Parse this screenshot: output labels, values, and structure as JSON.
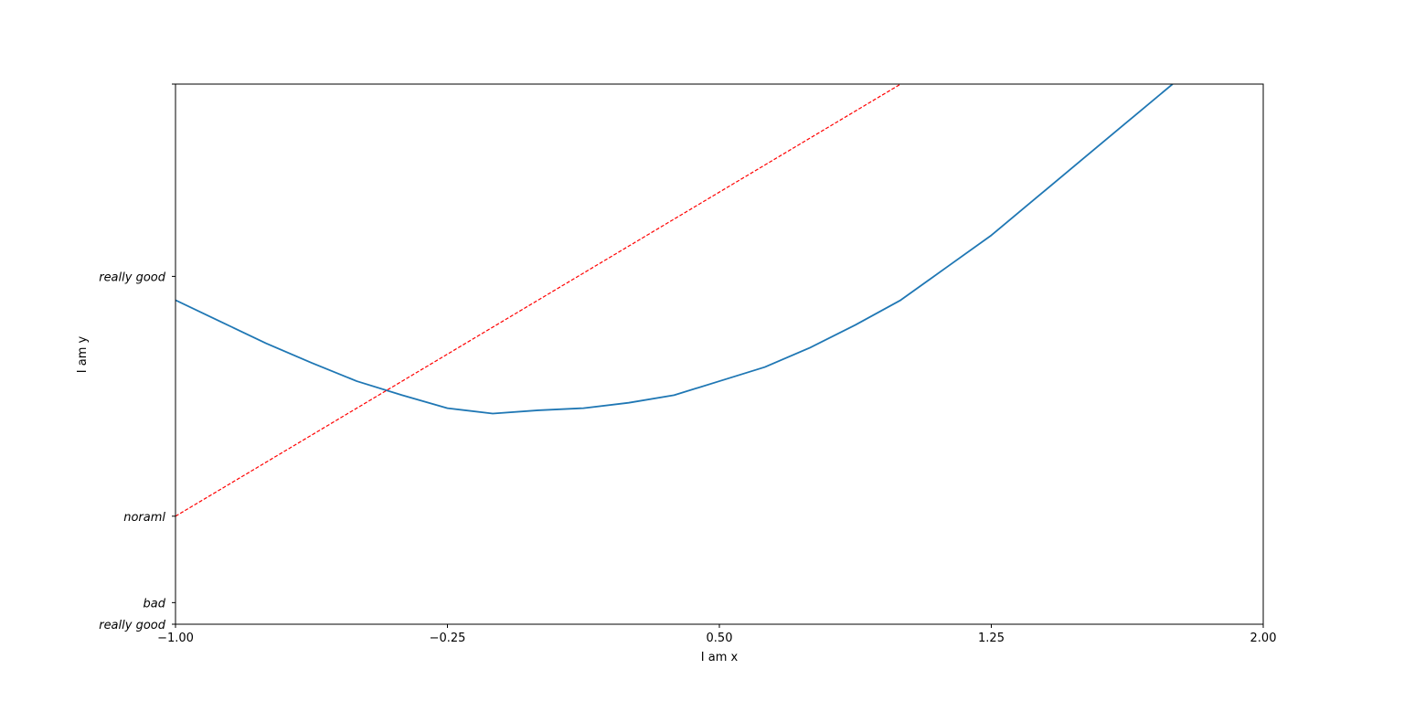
{
  "chart_data": {
    "type": "line",
    "xlabel": "I am x",
    "ylabel": "I am y",
    "xlim": [
      -1.0,
      2.0
    ],
    "ylim": [
      -2.0,
      3.0
    ],
    "grid": false,
    "xticks": [
      {
        "value": -1.0,
        "label": "−1.00"
      },
      {
        "value": -0.25,
        "label": "−0.25"
      },
      {
        "value": 0.5,
        "label": "0.50"
      },
      {
        "value": 1.25,
        "label": "1.25"
      },
      {
        "value": 2.0,
        "label": "2.00"
      }
    ],
    "yticks": [
      {
        "value": -2.0,
        "label": "really good"
      },
      {
        "value": -1.8,
        "label": "bad"
      },
      {
        "value": -1.0,
        "label": "noraml"
      },
      {
        "value": 1.22,
        "label": "really good"
      },
      {
        "value": 3.0,
        "label": ""
      }
    ],
    "series": [
      {
        "style": "solid",
        "color": "#1f77b4",
        "x": [
          -1.0,
          -0.875,
          -0.75,
          -0.625,
          -0.5,
          -0.375,
          -0.25,
          -0.125,
          0.0,
          0.125,
          0.25,
          0.375,
          0.5,
          0.625,
          0.75,
          0.875,
          1.0,
          1.125,
          1.25,
          1.375,
          1.5,
          1.625,
          1.75
        ],
        "y": [
          1.0,
          0.8,
          0.6,
          0.42,
          0.25,
          0.12,
          0.0,
          -0.05,
          -0.02,
          0.0,
          0.05,
          0.12,
          0.25,
          0.38,
          0.56,
          0.77,
          1.0,
          1.3,
          1.6,
          1.95,
          2.3,
          2.65,
          3.0
        ]
      },
      {
        "style": "dashed",
        "color": "#ff0000",
        "x": [
          -1.0,
          1.0
        ],
        "y": [
          -1.0,
          3.0
        ]
      }
    ]
  }
}
